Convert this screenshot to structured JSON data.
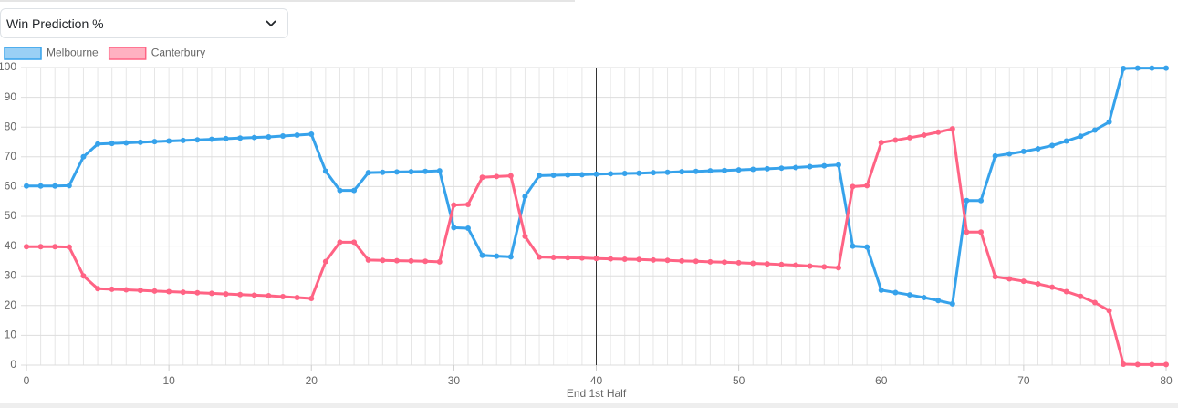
{
  "dropdown_label": "Win Prediction %",
  "chart_data": {
    "type": "line",
    "x": [
      0,
      1,
      2,
      3,
      4,
      5,
      6,
      7,
      8,
      9,
      10,
      11,
      12,
      13,
      14,
      15,
      16,
      17,
      18,
      19,
      20,
      21,
      22,
      23,
      24,
      25,
      26,
      27,
      28,
      29,
      30,
      31,
      32,
      33,
      34,
      35,
      36,
      37,
      38,
      39,
      40,
      41,
      42,
      43,
      44,
      45,
      46,
      47,
      48,
      49,
      50,
      51,
      52,
      53,
      54,
      55,
      56,
      57,
      58,
      59,
      60,
      61,
      62,
      63,
      64,
      65,
      66,
      67,
      68,
      69,
      70,
      71,
      72,
      73,
      74,
      75,
      76,
      77,
      78,
      79,
      80
    ],
    "series": [
      {
        "name": "Melbourne",
        "color": "#36a2eb",
        "values": [
          60.2,
          60.2,
          60.2,
          60.3,
          70,
          74.3,
          74.5,
          74.7,
          74.9,
          75.1,
          75.3,
          75.5,
          75.7,
          75.9,
          76.1,
          76.3,
          76.5,
          76.7,
          77,
          77.3,
          77.6,
          65.2,
          58.7,
          58.7,
          64.7,
          64.8,
          64.9,
          65,
          65.1,
          65.3,
          46.2,
          46,
          36.9,
          36.6,
          36.4,
          56.7,
          63.7,
          63.8,
          63.9,
          64,
          64.2,
          64.3,
          64.4,
          64.5,
          64.7,
          64.8,
          65,
          65.1,
          65.3,
          65.4,
          65.6,
          65.8,
          66,
          66.2,
          66.4,
          66.7,
          67,
          67.3,
          40,
          39.7,
          25.2,
          24.4,
          23.6,
          22.7,
          21.7,
          20.6,
          55.3,
          55.3,
          70.3,
          71,
          71.8,
          72.7,
          73.8,
          75.3,
          76.9,
          79,
          81.7,
          99.7,
          99.8,
          99.8,
          99.8
        ]
      },
      {
        "name": "Canterbury",
        "color": "#ff6384",
        "values": [
          39.8,
          39.8,
          39.8,
          39.7,
          30,
          25.7,
          25.5,
          25.3,
          25.1,
          24.9,
          24.7,
          24.5,
          24.3,
          24.1,
          23.9,
          23.7,
          23.5,
          23.3,
          23,
          22.7,
          22.4,
          34.8,
          41.3,
          41.3,
          35.3,
          35.2,
          35.1,
          35,
          34.9,
          34.7,
          53.8,
          54,
          63.1,
          63.4,
          63.6,
          43.3,
          36.3,
          36.2,
          36.1,
          36,
          35.8,
          35.7,
          35.6,
          35.5,
          35.3,
          35.2,
          35,
          34.9,
          34.7,
          34.6,
          34.4,
          34.2,
          34,
          33.8,
          33.6,
          33.3,
          33,
          32.7,
          60,
          60.3,
          74.8,
          75.6,
          76.4,
          77.3,
          78.3,
          79.4,
          44.7,
          44.7,
          29.7,
          29,
          28.2,
          27.3,
          26.2,
          24.7,
          23.1,
          21,
          18.3,
          0.3,
          0.2,
          0.2,
          0.2
        ]
      }
    ],
    "xlim": [
      0,
      80
    ],
    "xticks": [
      0,
      10,
      20,
      30,
      40,
      50,
      60,
      70,
      80
    ],
    "ylim": [
      0,
      100
    ],
    "yticks": [
      0,
      10,
      20,
      30,
      40,
      50,
      60,
      70,
      80,
      90,
      100
    ],
    "grid": true,
    "legend": "top-left",
    "annotations": [
      {
        "x": 40,
        "label": "End 1st Half"
      }
    ]
  }
}
